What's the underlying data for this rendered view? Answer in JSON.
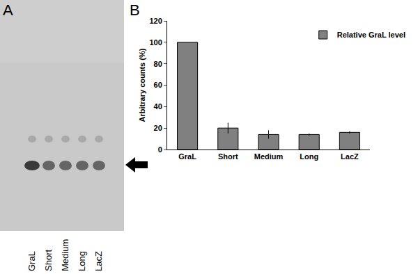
{
  "chart_data": {
    "type": "bar",
    "panel_label": "B",
    "categories": [
      "GraL",
      "Short",
      "Medium",
      "Long",
      "LacZ"
    ],
    "series": [
      {
        "name": "Relative GraL level",
        "color": "#808080",
        "values": [
          100,
          20,
          14,
          14,
          16
        ],
        "errors": [
          0,
          5,
          4,
          1,
          1
        ]
      }
    ],
    "y_label": "Arbitrary counts (%)",
    "ylim": [
      0,
      120
    ],
    "yticks": [
      0,
      20,
      40,
      60,
      80,
      100,
      120
    ],
    "grid": false,
    "legend": "upper right"
  },
  "gel": {
    "panel_label": "A",
    "lanes": [
      "GraL",
      "Short",
      "Medium",
      "Long",
      "LacZ"
    ]
  }
}
